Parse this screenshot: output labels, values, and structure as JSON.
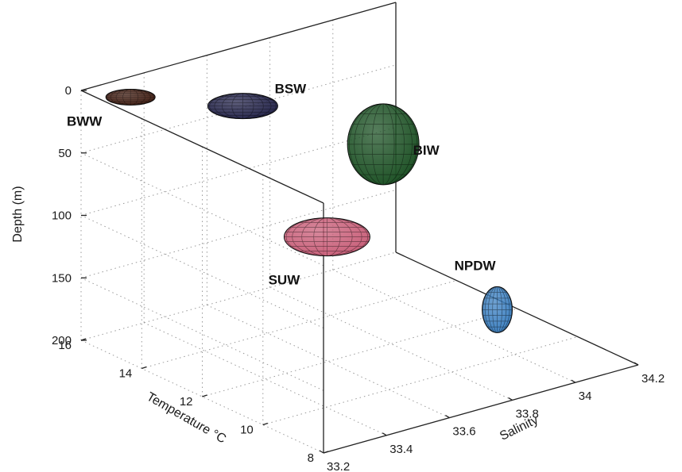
{
  "chart_data": {
    "type": "scatter",
    "subtype": "3d-ellipsoids",
    "title": "",
    "axes": {
      "x": {
        "label": "Salinity",
        "lim": [
          33.2,
          34.2
        ],
        "ticks": [
          "33.2",
          "33.4",
          "33.6",
          "33.8",
          "34",
          "34.2"
        ]
      },
      "y": {
        "label": "Temperature °C",
        "lim": [
          8,
          16
        ],
        "ticks": [
          "8",
          "10",
          "12",
          "14",
          "16"
        ]
      },
      "z": {
        "label": "Depth (m)",
        "lim": [
          0,
          200
        ],
        "reversed": true,
        "ticks": [
          "0",
          "50",
          "100",
          "150",
          "200"
        ]
      }
    },
    "grid": true,
    "legend": "none",
    "water_masses": [
      {
        "name": "BWW",
        "salinity": 33.28,
        "temperature": 15.2,
        "depth": 2,
        "color": "#4a2418"
      },
      {
        "name": "BSW",
        "salinity": 33.55,
        "temperature": 14.3,
        "depth": 18,
        "color": "#26264c"
      },
      {
        "name": "SUW",
        "salinity": 33.5,
        "temperature": 11.0,
        "depth": 82,
        "color": "#c9607a"
      },
      {
        "name": "BIW",
        "salinity": 33.9,
        "temperature": 13.3,
        "depth": 62,
        "color": "#1e5226"
      },
      {
        "name": "NPDW",
        "salinity": 34.06,
        "temperature": 11.2,
        "depth": 182,
        "color": "#3f82c2"
      }
    ]
  }
}
